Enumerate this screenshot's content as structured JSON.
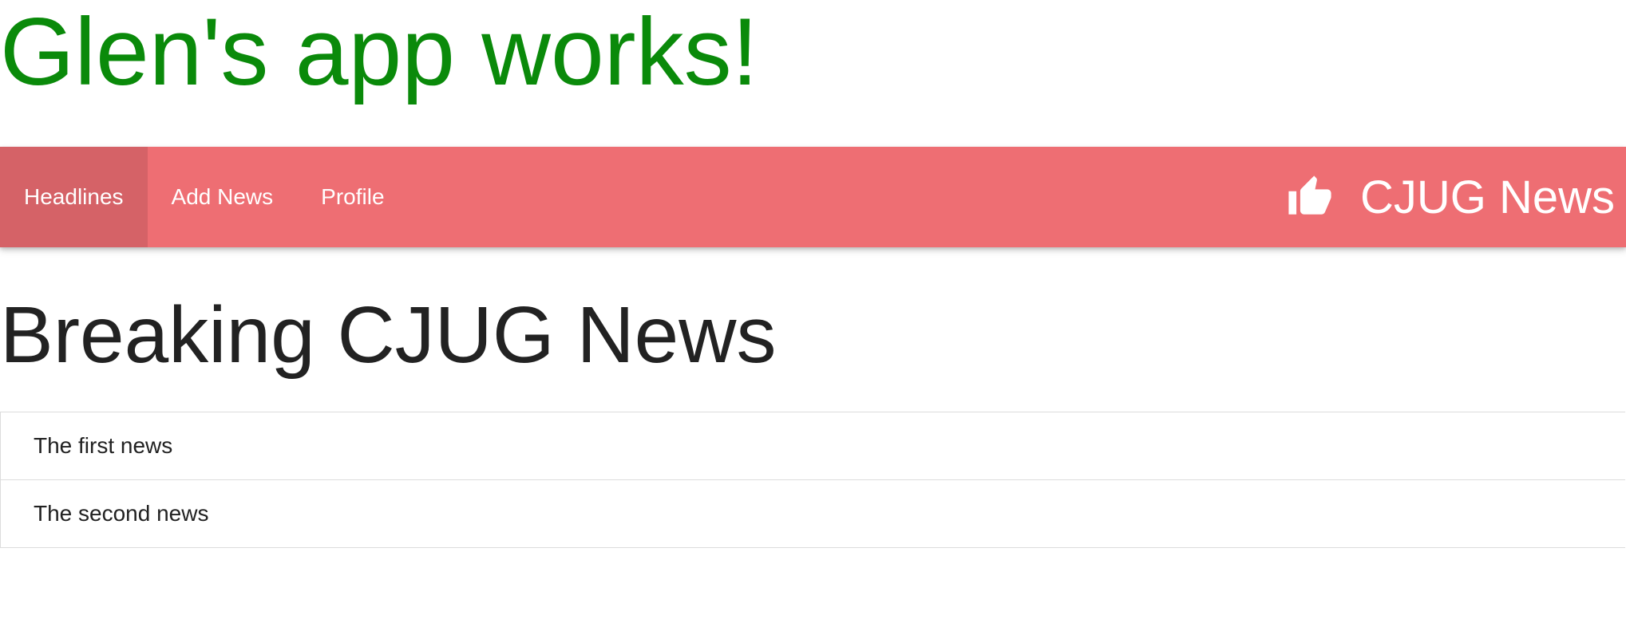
{
  "app": {
    "title": "Glen's app works!"
  },
  "navbar": {
    "links": [
      {
        "label": "Headlines",
        "active": true
      },
      {
        "label": "Add News",
        "active": false
      },
      {
        "label": "Profile",
        "active": false
      }
    ],
    "brand": {
      "icon": "thumbs-up-icon",
      "label": "CJUG News"
    },
    "color": "#ee6e73"
  },
  "main": {
    "heading": "Breaking CJUG News",
    "news": [
      {
        "title": "The first news"
      },
      {
        "title": "The second news"
      }
    ]
  },
  "colors": {
    "title": "#0a8a0a",
    "nav": "#ee6e73",
    "text": "#222222"
  }
}
